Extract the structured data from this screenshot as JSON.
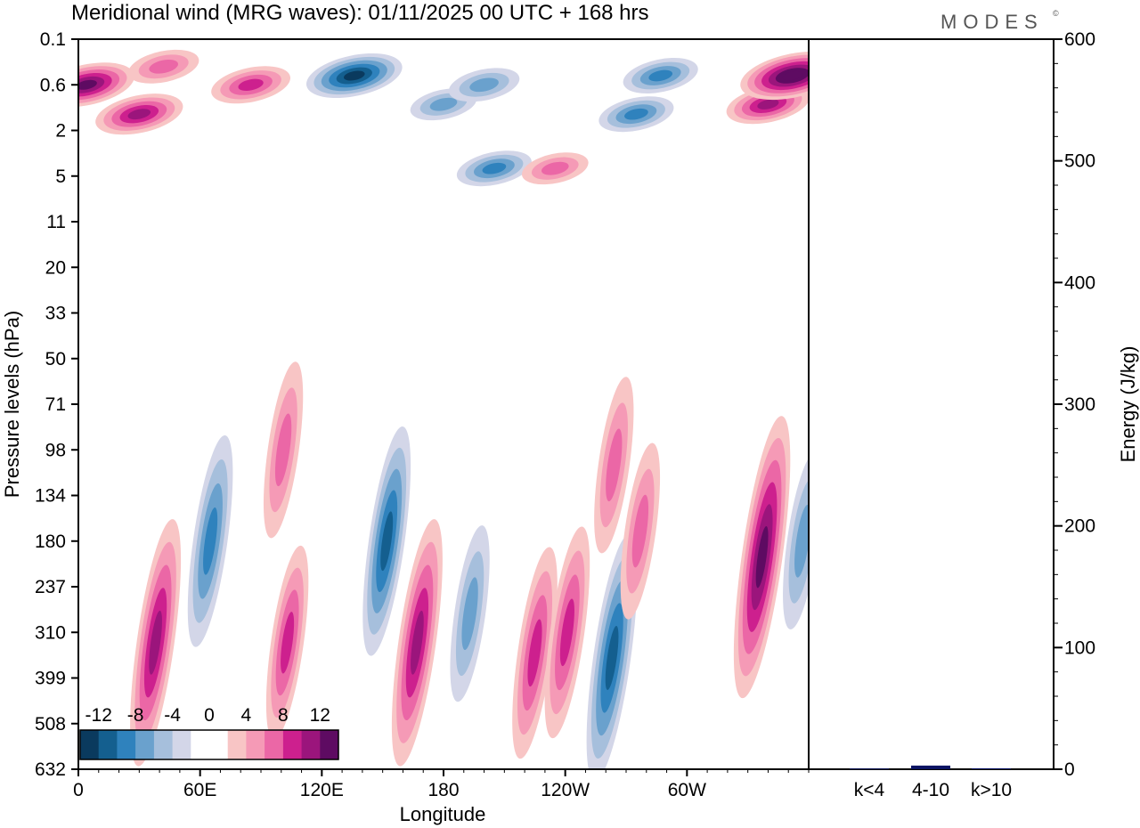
{
  "header": {
    "title": "Meridional wind (MRG waves):  01/11/2025  00 UTC  + 168 hrs",
    "logo": "MODES",
    "logo_mark": "©"
  },
  "chart_data": [
    {
      "type": "heatmap",
      "name": "meridional-wind-contours",
      "xlabel": "Longitude",
      "ylabel": "Pressure levels (hPa)",
      "x_ticks": [
        "0",
        "60E",
        "120E",
        "180",
        "120W",
        "60W"
      ],
      "x_tick_degrees": [
        0,
        60,
        120,
        180,
        240,
        300
      ],
      "x_range_degrees": [
        0,
        360
      ],
      "y_ticks": [
        "0.1",
        "0.6",
        "2",
        "5",
        "11",
        "20",
        "33",
        "50",
        "71",
        "98",
        "134",
        "180",
        "237",
        "310",
        "399",
        "508",
        "632"
      ],
      "y_scale": "model levels, top to bottom",
      "colorbar": {
        "labels": [
          "-12",
          "-8",
          "-4",
          "0",
          "4",
          "8",
          "12"
        ],
        "colors": [
          "#0a3a5e",
          "#145f8f",
          "#2f82bd",
          "#6aa1cd",
          "#a6bfdc",
          "#d3d6e8",
          "#ffffff",
          "#ffffff",
          "#f8c5c5",
          "#f59ab6",
          "#eb67a6",
          "#cd208e",
          "#9b157c",
          "#5e0b62"
        ]
      },
      "features": [
        {
          "lon": 4,
          "level": 0.6,
          "value": 12
        },
        {
          "lon": 30,
          "level": 1.5,
          "value": 10
        },
        {
          "lon": 42,
          "level": 0.4,
          "value": 6
        },
        {
          "lon": 85,
          "level": 0.6,
          "value": 8
        },
        {
          "lon": 136,
          "level": 0.5,
          "value": -12
        },
        {
          "lon": 180,
          "level": 1.2,
          "value": -5
        },
        {
          "lon": 200,
          "level": 0.6,
          "value": -6
        },
        {
          "lon": 205,
          "level": 4.5,
          "value": -7
        },
        {
          "lon": 235,
          "level": 4.5,
          "value": 5
        },
        {
          "lon": 275,
          "level": 1.5,
          "value": -7
        },
        {
          "lon": 287,
          "level": 0.5,
          "value": -7
        },
        {
          "lon": 340,
          "level": 1.2,
          "value": 9
        },
        {
          "lon": 352,
          "level": 0.5,
          "value": 14
        },
        {
          "lon": 38,
          "level": 330,
          "value": 10
        },
        {
          "lon": 65,
          "level": 180,
          "value": -8
        },
        {
          "lon": 101,
          "level": 98,
          "value": 6
        },
        {
          "lon": 103,
          "level": 330,
          "value": 7
        },
        {
          "lon": 152,
          "level": 180,
          "value": -9
        },
        {
          "lon": 167,
          "level": 330,
          "value": 10
        },
        {
          "lon": 193,
          "level": 280,
          "value": -6
        },
        {
          "lon": 225,
          "level": 350,
          "value": 8
        },
        {
          "lon": 241,
          "level": 310,
          "value": 8
        },
        {
          "lon": 263,
          "level": 360,
          "value": -10
        },
        {
          "lon": 264,
          "level": 110,
          "value": 6
        },
        {
          "lon": 277,
          "level": 170,
          "value": 6
        },
        {
          "lon": 337,
          "level": 200,
          "value": 12
        },
        {
          "lon": 357,
          "level": 180,
          "value": -6
        }
      ]
    },
    {
      "type": "bar",
      "name": "energy-bars",
      "categories": [
        "k<4",
        "4-10",
        "k>10"
      ],
      "values": [
        0.6,
        3.0,
        0.8
      ],
      "ylabel": "Energy (J/kg)",
      "ylim": [
        0,
        600
      ],
      "y_ticks": [
        "0",
        "100",
        "200",
        "300",
        "400",
        "500",
        "600"
      ],
      "bar_color": "#0b1464"
    }
  ]
}
